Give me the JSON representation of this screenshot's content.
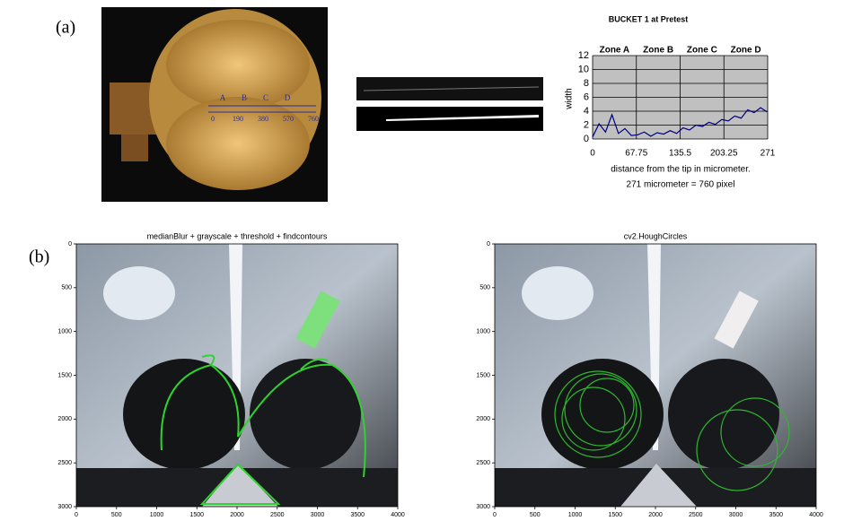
{
  "figure": {
    "labels": [
      "(a)",
      "(b)"
    ]
  },
  "photo": {
    "zone_letters": [
      "A",
      "B",
      "C",
      "D"
    ],
    "pixel_marks": [
      0,
      190,
      380,
      570,
      760
    ]
  },
  "chart_data": {
    "type": "line",
    "title": "BUCKET 1 at Pretest",
    "y_label": "width",
    "x_label": "distance from the tip in micrometer.",
    "note": "271 micrometer = 760 pixel",
    "zones": [
      "Zone A",
      "Zone B",
      "Zone C",
      "Zone D"
    ],
    "x": [
      0,
      10,
      20,
      30,
      40,
      50,
      60,
      70,
      80,
      90,
      100,
      110,
      120,
      130,
      140,
      150,
      160,
      170,
      180,
      190,
      200,
      210,
      220,
      230,
      240,
      250,
      260,
      270
    ],
    "series": [
      {
        "color": "#00007f",
        "values": [
          0.3,
          2.2,
          1.0,
          3.5,
          0.8,
          1.5,
          0.5,
          0.6,
          1.0,
          0.4,
          0.9,
          0.7,
          1.2,
          0.8,
          1.6,
          1.3,
          2.0,
          1.8,
          2.4,
          2.1,
          2.8,
          2.6,
          3.3,
          3.0,
          4.2,
          3.8,
          4.5,
          3.9
        ]
      }
    ],
    "xlim": [
      0,
      271
    ],
    "xticks": [
      0,
      67.75,
      135.5,
      203.25,
      271
    ],
    "ylim": [
      0,
      12
    ],
    "yticks": [
      0,
      2,
      4,
      6,
      8,
      10,
      12
    ],
    "grid": true
  },
  "image_plots": [
    {
      "title": "medianBlur + grayscale + threshold + findcontours",
      "xlim": [
        0,
        4000
      ],
      "xticks": [
        0,
        500,
        1000,
        1500,
        2000,
        2500,
        3000,
        3500,
        4000
      ],
      "ylim": [
        0,
        3000
      ],
      "yticks": [
        0,
        500,
        1000,
        1500,
        2000,
        2500,
        3000
      ],
      "y_inverted": true
    },
    {
      "title": "cv2.HoughCircles",
      "xlim": [
        0,
        4000
      ],
      "xticks": [
        0,
        500,
        1000,
        1500,
        2000,
        2500,
        3000,
        3500,
        4000
      ],
      "ylim": [
        0,
        3000
      ],
      "yticks": [
        0,
        500,
        1000,
        1500,
        2000,
        2500,
        3000
      ],
      "y_inverted": true
    }
  ]
}
